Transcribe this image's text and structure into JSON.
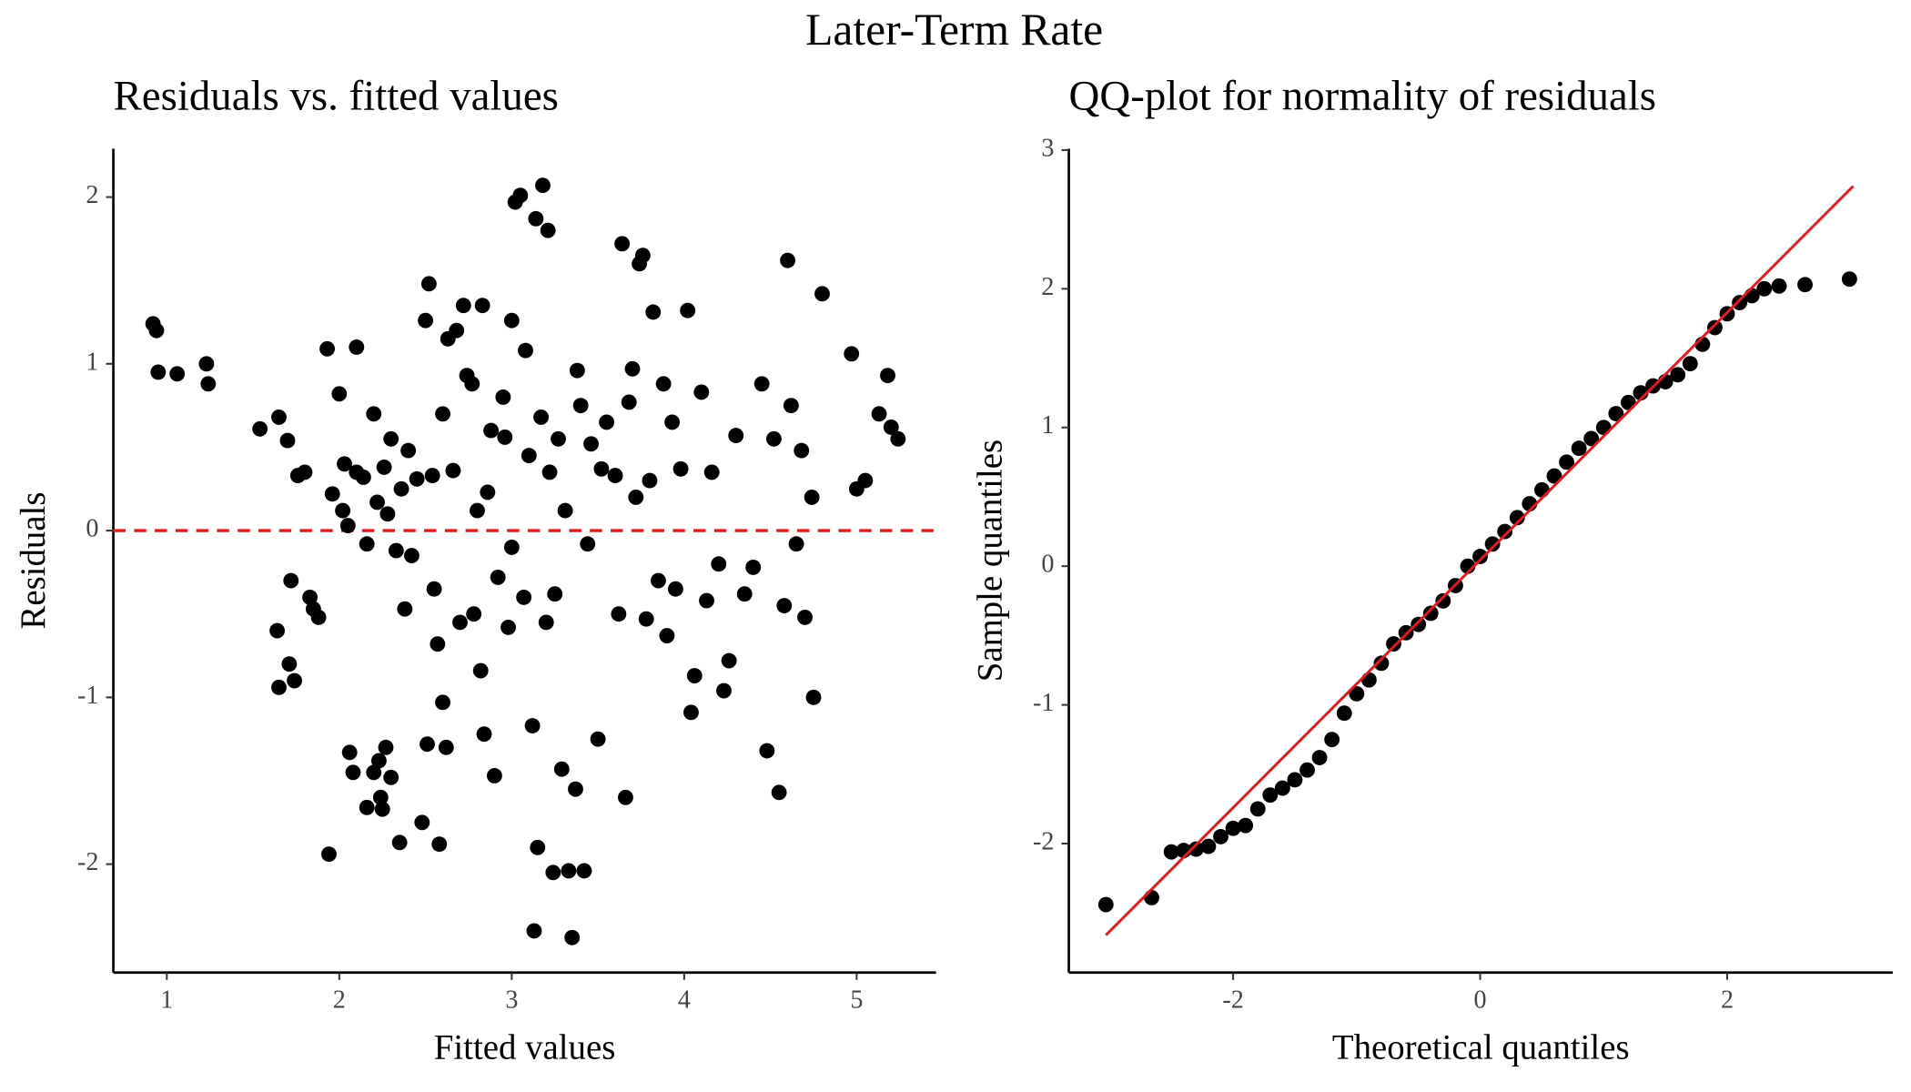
{
  "title": "Later-Term Rate",
  "chart_data": [
    {
      "type": "scatter",
      "title": "Residuals vs. fitted values",
      "x_label": "Fitted values",
      "y_label": "Residuals",
      "color": "#000000",
      "x": [
        0.92,
        0.94,
        0.95,
        1.06,
        1.23,
        1.24,
        1.54,
        1.65,
        1.7,
        1.64,
        1.65,
        1.71,
        1.72,
        1.74,
        1.76,
        1.8,
        1.83,
        1.85,
        1.88,
        1.93,
        1.94,
        1.96,
        2.0,
        2.02,
        2.03,
        2.05,
        2.06,
        2.08,
        2.1,
        2.1,
        2.14,
        2.16,
        2.16,
        2.2,
        2.2,
        2.22,
        2.23,
        2.24,
        2.25,
        2.26,
        2.27,
        2.28,
        2.3,
        2.3,
        2.33,
        2.35,
        2.36,
        2.38,
        2.4,
        2.42,
        2.45,
        2.48,
        2.5,
        2.51,
        2.52,
        2.54,
        2.55,
        2.57,
        2.58,
        2.6,
        2.6,
        2.62,
        2.63,
        2.66,
        2.68,
        2.7,
        2.72,
        2.74,
        2.77,
        2.78,
        2.8,
        2.82,
        2.83,
        2.84,
        2.86,
        2.88,
        2.9,
        2.92,
        2.95,
        2.96,
        2.98,
        3.0,
        3.0,
        3.02,
        3.05,
        3.07,
        3.08,
        3.1,
        3.12,
        3.13,
        3.14,
        3.15,
        3.17,
        3.18,
        3.2,
        3.21,
        3.22,
        3.24,
        3.25,
        3.27,
        3.29,
        3.31,
        3.33,
        3.35,
        3.37,
        3.38,
        3.4,
        3.42,
        3.44,
        3.46,
        3.5,
        3.52,
        3.55,
        3.6,
        3.62,
        3.64,
        3.66,
        3.68,
        3.7,
        3.72,
        3.74,
        3.76,
        3.78,
        3.8,
        3.82,
        3.85,
        3.88,
        3.9,
        3.93,
        3.95,
        3.98,
        4.02,
        4.04,
        4.06,
        4.1,
        4.13,
        4.16,
        4.2,
        4.23,
        4.26,
        4.3,
        4.35,
        4.4,
        4.45,
        4.48,
        4.52,
        4.55,
        4.58,
        4.6,
        4.62,
        4.65,
        4.68,
        4.7,
        4.74,
        4.75,
        4.8,
        4.97,
        5.0,
        5.05,
        5.13,
        5.18,
        5.2,
        5.24
      ],
      "y": [
        1.24,
        1.2,
        0.95,
        0.94,
        1.0,
        0.88,
        0.61,
        0.68,
        0.54,
        -0.6,
        -0.94,
        -0.8,
        -0.3,
        -0.9,
        0.33,
        0.35,
        -0.4,
        -0.47,
        -0.52,
        1.09,
        -1.94,
        0.22,
        0.82,
        0.12,
        0.4,
        0.03,
        -1.33,
        -1.45,
        1.1,
        0.35,
        0.32,
        -1.66,
        -0.08,
        0.7,
        -1.45,
        0.17,
        -1.38,
        -1.6,
        -1.67,
        0.38,
        -1.3,
        0.1,
        -1.48,
        0.55,
        -0.12,
        -1.87,
        0.25,
        -0.47,
        0.48,
        -0.15,
        0.31,
        -1.75,
        1.26,
        -1.28,
        1.48,
        0.33,
        -0.35,
        -0.68,
        -1.88,
        0.7,
        -1.03,
        -1.3,
        1.15,
        0.36,
        1.2,
        -0.55,
        1.35,
        0.93,
        0.88,
        -0.5,
        0.12,
        -0.84,
        1.35,
        -1.22,
        0.23,
        0.6,
        -1.47,
        -0.28,
        0.8,
        0.56,
        -0.58,
        1.26,
        -0.1,
        1.97,
        2.01,
        -0.4,
        1.08,
        0.45,
        -1.17,
        -2.4,
        1.87,
        -1.9,
        0.68,
        2.07,
        -0.55,
        1.8,
        0.35,
        -2.05,
        -0.38,
        0.55,
        -1.43,
        0.12,
        -2.04,
        -2.44,
        -1.55,
        0.96,
        0.75,
        -2.04,
        -0.08,
        0.52,
        -1.25,
        0.37,
        0.65,
        0.33,
        -0.5,
        1.72,
        -1.6,
        0.77,
        0.97,
        0.2,
        1.6,
        1.65,
        -0.53,
        0.3,
        1.31,
        -0.3,
        0.88,
        -0.63,
        0.65,
        -0.35,
        0.37,
        1.32,
        -1.09,
        -0.87,
        0.83,
        -0.42,
        0.35,
        -0.2,
        -0.96,
        -0.78,
        0.57,
        -0.38,
        -0.22,
        0.88,
        -1.32,
        0.55,
        -1.57,
        -0.45,
        1.62,
        0.75,
        -0.08,
        0.48,
        -0.52,
        0.2,
        -1.0,
        1.42,
        1.06,
        0.25,
        0.3,
        0.7,
        0.93,
        0.62,
        0.55
      ],
      "hline": {
        "y": 0,
        "color": "#e41a1c",
        "dashed": true
      },
      "xlim": [
        0.69,
        5.46
      ],
      "ylim": [
        -2.65,
        2.29
      ],
      "xticks": [
        1,
        2,
        3,
        4,
        5
      ],
      "yticks": [
        -2,
        -1,
        0,
        1,
        2
      ]
    },
    {
      "type": "scatter",
      "title": "QQ-plot for normality of residuals",
      "x_label": "Theoretical quantiles",
      "y_label": "Sample quantiles",
      "color": "#000000",
      "x": [
        -3.03,
        -2.66,
        -2.5,
        -2.4,
        -2.3,
        -2.2,
        -2.1,
        -2.0,
        -1.9,
        -1.8,
        -1.7,
        -1.6,
        -1.5,
        -1.4,
        -1.3,
        -1.2,
        -1.1,
        -1.0,
        -0.9,
        -0.8,
        -0.7,
        -0.6,
        -0.5,
        -0.4,
        -0.3,
        -0.2,
        -0.1,
        0,
        0.1,
        0.2,
        0.3,
        0.4,
        0.5,
        0.6,
        0.7,
        0.8,
        0.9,
        1.0,
        1.1,
        1.2,
        1.3,
        1.4,
        1.5,
        1.6,
        1.7,
        1.8,
        1.9,
        2.0,
        2.1,
        2.2,
        2.3,
        2.42,
        2.63,
        2.99
      ],
      "y": [
        -2.44,
        -2.39,
        -2.06,
        -2.05,
        -2.04,
        -2.02,
        -1.95,
        -1.89,
        -1.87,
        -1.75,
        -1.65,
        -1.6,
        -1.54,
        -1.47,
        -1.38,
        -1.25,
        -1.06,
        -0.92,
        -0.82,
        -0.7,
        -0.56,
        -0.48,
        -0.42,
        -0.34,
        -0.25,
        -0.14,
        0.0,
        0.07,
        0.16,
        0.25,
        0.35,
        0.45,
        0.55,
        0.65,
        0.75,
        0.85,
        0.92,
        1.0,
        1.1,
        1.18,
        1.25,
        1.3,
        1.33,
        1.38,
        1.46,
        1.6,
        1.72,
        1.82,
        1.9,
        1.95,
        2.0,
        2.02,
        2.03,
        2.07
      ],
      "reference_line": {
        "x": [
          -3.03,
          3.02
        ],
        "y": [
          -2.66,
          2.74
        ],
        "color": "#e41a1c"
      },
      "xlim": [
        -3.33,
        3.34
      ],
      "ylim": [
        -2.93,
        3.01
      ],
      "xticks": [
        -2,
        0,
        2
      ],
      "yticks": [
        -2,
        -1,
        0,
        1,
        2,
        3
      ]
    }
  ]
}
